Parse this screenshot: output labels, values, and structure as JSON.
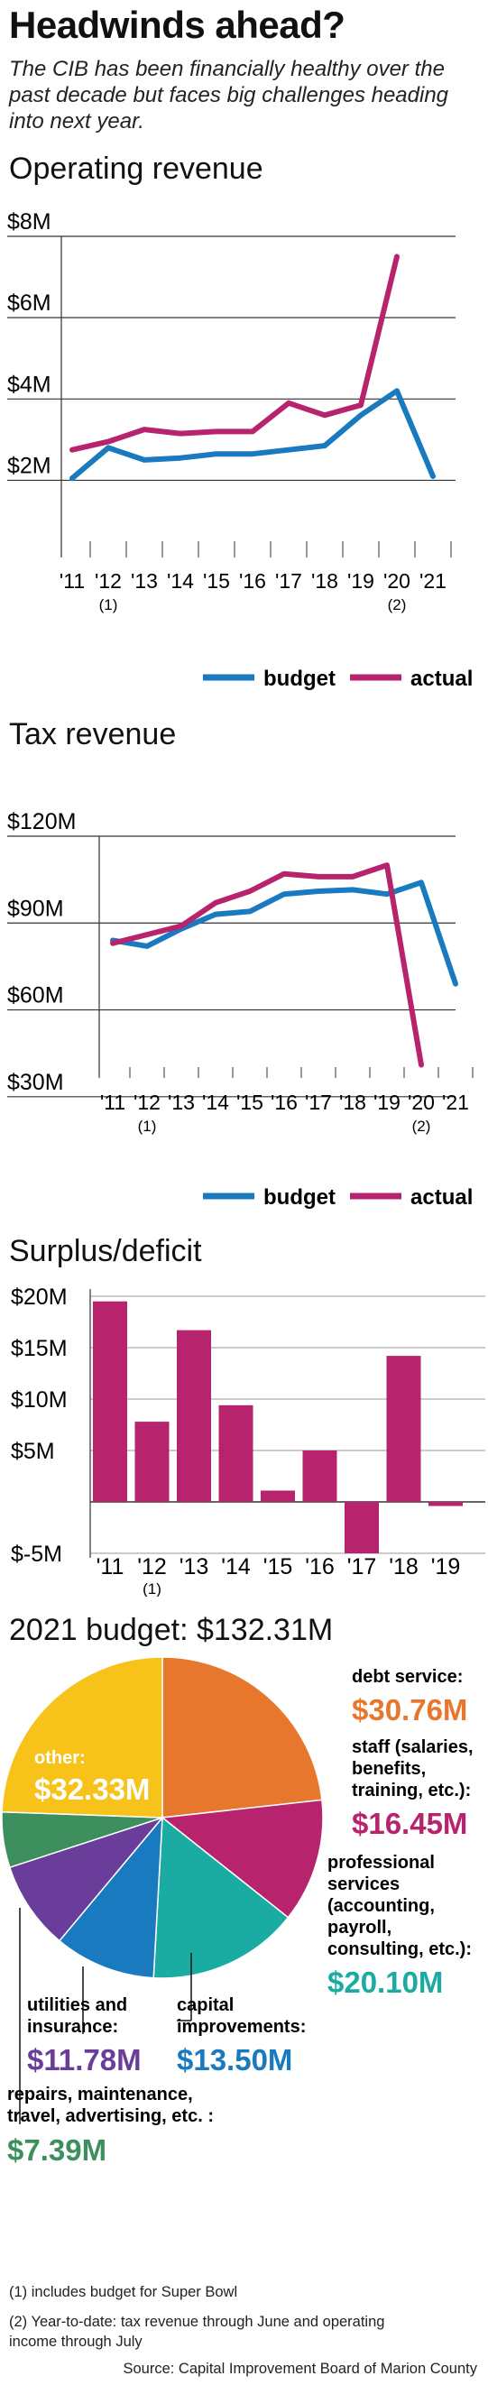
{
  "header": {
    "title": "Headwinds ahead?",
    "subtitle": "The CIB has been financially healthy over the past decade but faces big challenges heading into next year."
  },
  "colors": {
    "budget": "#1a7abf",
    "actual": "#b8236e",
    "grid": "#333333"
  },
  "chart_data": [
    {
      "type": "line",
      "title": "Operating revenue",
      "x": [
        "'11",
        "'12",
        "'13",
        "'14",
        "'15",
        "'16",
        "'17",
        "'18",
        "'19",
        "'20",
        "'21"
      ],
      "x_notes": [
        "",
        "(1)",
        "",
        "",
        "",
        "",
        "",
        "",
        "",
        "(2)",
        ""
      ],
      "yticks": [
        "$8M",
        "$6M",
        "$4M",
        "$2M"
      ],
      "ylim": [
        1.5,
        8
      ],
      "series": [
        {
          "name": "budget",
          "values": [
            2.05,
            2.8,
            2.5,
            2.55,
            2.65,
            2.65,
            2.75,
            2.85,
            3.6,
            4.2,
            2.1
          ]
        },
        {
          "name": "actual",
          "values": [
            2.75,
            2.95,
            3.25,
            3.15,
            3.2,
            3.2,
            3.9,
            3.6,
            3.85,
            7.5,
            null
          ]
        }
      ],
      "legend": {
        "budget": "budget",
        "actual": "actual",
        "placement": "bottom-right"
      }
    },
    {
      "type": "line",
      "title": "Tax revenue",
      "x": [
        "'11",
        "'12",
        "'13",
        "'14",
        "'15",
        "'16",
        "'17",
        "'18",
        "'19",
        "'20",
        "'21"
      ],
      "x_notes": [
        "",
        "(1)",
        "",
        "",
        "",
        "",
        "",
        "",
        "",
        "(2)",
        ""
      ],
      "yticks": [
        "$120M",
        "$90M",
        "$60M",
        "$30M"
      ],
      "ylim": [
        10,
        120
      ],
      "series": [
        {
          "name": "budget",
          "values": [
            84,
            82,
            88,
            93,
            94,
            100,
            101,
            101.5,
            100,
            104,
            69
          ]
        },
        {
          "name": "actual",
          "values": [
            83,
            86,
            89,
            97,
            101,
            107,
            106,
            106,
            110,
            41,
            null
          ]
        }
      ],
      "legend": {
        "budget": "budget",
        "actual": "actual",
        "placement": "bottom-right"
      }
    },
    {
      "type": "bar",
      "title": "Surplus/deficit",
      "categories": [
        "'11",
        "'12",
        "'13",
        "'14",
        "'15",
        "'16",
        "'17",
        "'18",
        "'19"
      ],
      "category_notes": [
        "",
        "(1)",
        "",
        "",
        "",
        "",
        "",
        "",
        ""
      ],
      "values": [
        19.5,
        7.8,
        16.7,
        9.4,
        1.1,
        5.0,
        -5.0,
        14.2,
        -0.4
      ],
      "yticks": [
        "$20M",
        "$15M",
        "$10M",
        "$5M",
        "$-5M"
      ],
      "ylim": [
        -5,
        20
      ]
    },
    {
      "type": "pie",
      "title": "2021 budget: $132.31M",
      "slices": [
        {
          "label": "debt service:",
          "value": 30.76,
          "value_label": "$30.76M",
          "color": "#e8772e"
        },
        {
          "label": "staff (salaries, benefits, training, etc.):",
          "value": 16.45,
          "value_label": "$16.45M",
          "color": "#b8236e"
        },
        {
          "label": "professional services (accounting, payroll, consulting, etc.):",
          "value": 20.1,
          "value_label": "$20.10M",
          "color": "#1aaba3"
        },
        {
          "label": "capital improvements:",
          "value": 13.5,
          "value_label": "$13.50M",
          "color": "#1a7abf"
        },
        {
          "label": "utilities and insurance:",
          "value": 11.78,
          "value_label": "$11.78M",
          "color": "#6a3d9a"
        },
        {
          "label": "repairs, maintenance, travel, advertising, etc. :",
          "value": 7.39,
          "value_label": "$7.39M",
          "color": "#3d8f5e"
        },
        {
          "label": "other:",
          "value": 32.33,
          "value_label": "$32.33M",
          "color": "#f7c31a"
        }
      ]
    }
  ],
  "pie_labels": {
    "debt_label": "debt service:",
    "staff_label_1": "staff (salaries,",
    "staff_label_2": "benefits,",
    "staff_label_3": "training, etc.):",
    "prof_label_1": "professional",
    "prof_label_2": "services",
    "prof_label_3": "(accounting,",
    "prof_label_4": "payroll,",
    "prof_label_5": "consulting, etc.):",
    "cap_label_1": "capital",
    "cap_label_2": "improvements:",
    "util_label_1": "utilities and",
    "util_label_2": "insurance:",
    "rep_label_1": "repairs, maintenance,",
    "rep_label_2": "travel, advertising, etc. :",
    "other_label": "other:"
  },
  "footnotes": {
    "note1": "(1)  includes budget for Super Bowl",
    "note2_line1": "(2) Year-to-date: tax revenue through June and operating",
    "note2_line2": "income through July",
    "source": "Source: Capital Improvement Board of Marion County"
  }
}
